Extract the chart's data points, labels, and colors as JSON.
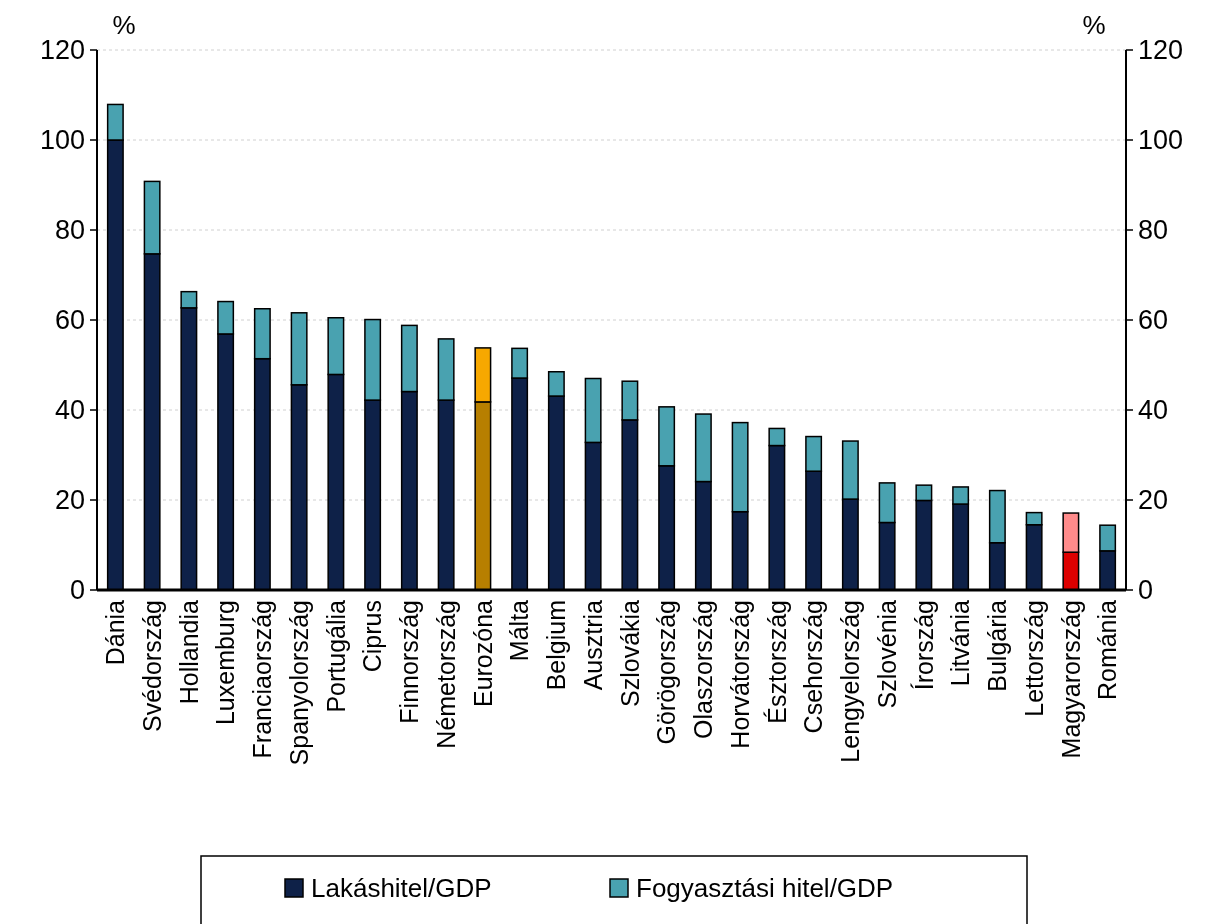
{
  "chart_data": {
    "type": "bar",
    "stacked": true,
    "ylabel": "%",
    "y2label": "%",
    "categories": [
      "Dánia",
      "Svédország",
      "Hollandia",
      "Luxemburg",
      "Franciaország",
      "Spanyolország",
      "Portugália",
      "Ciprus",
      "Finnország",
      "Németország",
      "Eurozóna",
      "Málta",
      "Belgium",
      "Ausztria",
      "Szlovákia",
      "Görögország",
      "Olaszország",
      "Horvátország",
      "Észtország",
      "Csehország",
      "Lengyelország",
      "Szlovénia",
      "Írország",
      "Litvánia",
      "Bulgária",
      "Lettország",
      "Magyarország",
      "Románia"
    ],
    "series": [
      {
        "name": "Lakáshitel/GDP",
        "color": "#0e2148",
        "values": [
          100,
          74.7,
          62.7,
          56.9,
          51.4,
          45.6,
          47.9,
          42.2,
          44.1,
          42.2,
          41.8,
          47.1,
          43.1,
          32.8,
          37.8,
          27.6,
          24.1,
          17.4,
          32.1,
          26.4,
          20.2,
          15.0,
          19.9,
          19.1,
          10.5,
          14.5,
          8.4,
          8.7
        ],
        "colors": [
          "#0e2148",
          "#0e2148",
          "#0e2148",
          "#0e2148",
          "#0e2148",
          "#0e2148",
          "#0e2148",
          "#0e2148",
          "#0e2148",
          "#0e2148",
          "#b77f00",
          "#0e2148",
          "#0e2148",
          "#0e2148",
          "#0e2148",
          "#0e2148",
          "#0e2148",
          "#0e2148",
          "#0e2148",
          "#0e2148",
          "#0e2148",
          "#0e2148",
          "#0e2148",
          "#0e2148",
          "#0e2148",
          "#0e2148",
          "#dd0000",
          "#0e2148"
        ]
      },
      {
        "name": "Fogyasztási hitel/GDP",
        "color": "#49a2b0",
        "values": [
          7.9,
          16.1,
          3.6,
          7.2,
          11.1,
          16.0,
          12.6,
          17.9,
          14.7,
          13.6,
          12.0,
          6.6,
          5.4,
          14.2,
          8.6,
          13.1,
          15.0,
          19.8,
          3.8,
          7.7,
          12.9,
          8.8,
          3.4,
          3.8,
          11.6,
          2.7,
          8.7,
          5.7
        ],
        "colors": [
          "#49a2b0",
          "#49a2b0",
          "#49a2b0",
          "#49a2b0",
          "#49a2b0",
          "#49a2b0",
          "#49a2b0",
          "#49a2b0",
          "#49a2b0",
          "#49a2b0",
          "#f7a800",
          "#49a2b0",
          "#49a2b0",
          "#49a2b0",
          "#49a2b0",
          "#49a2b0",
          "#49a2b0",
          "#49a2b0",
          "#49a2b0",
          "#49a2b0",
          "#49a2b0",
          "#49a2b0",
          "#49a2b0",
          "#49a2b0",
          "#49a2b0",
          "#49a2b0",
          "#ff8b8b",
          "#49a2b0"
        ]
      }
    ],
    "ylim": [
      0,
      120
    ],
    "yticks": [
      0,
      20,
      40,
      60,
      80,
      100,
      120
    ],
    "y2lim": [
      0,
      120
    ],
    "y2ticks": [
      0,
      20,
      40,
      60,
      80,
      100,
      120
    ],
    "grid": "y",
    "legend": "bottom"
  }
}
